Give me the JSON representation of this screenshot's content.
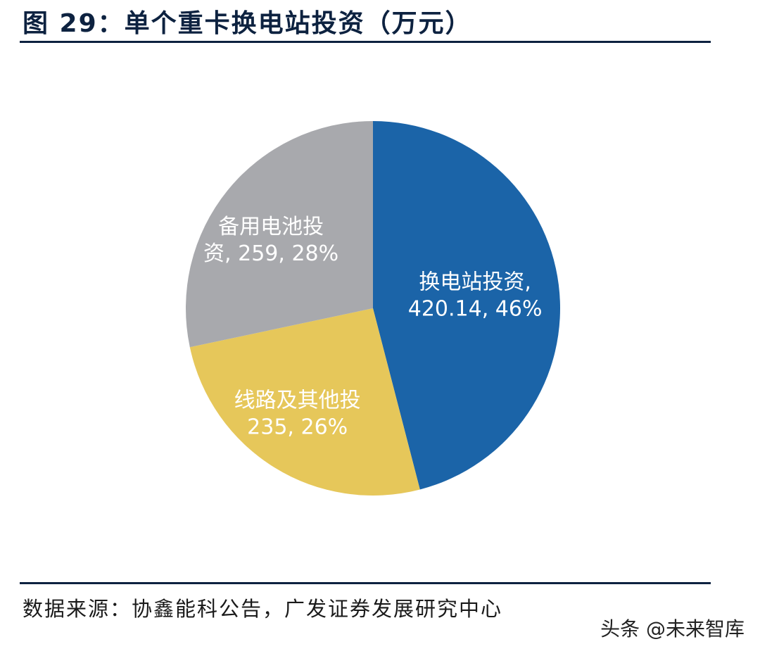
{
  "header": {
    "title": "图 29：单个重卡换电站投资（万元）"
  },
  "chart_data": {
    "type": "pie",
    "title": "图 29：单个重卡换电站投资（万元）",
    "slices": [
      {
        "label": "换电站投资",
        "value": 420.14,
        "percent": "46%",
        "color": "#1b64a8",
        "label_lines": [
          "换电站投资,",
          "420.14, 46%"
        ]
      },
      {
        "label": "线路及其他投",
        "value": 235,
        "percent": "26%",
        "color": "#e6c75a",
        "label_lines": [
          "线路及其他投",
          "235, 26%"
        ]
      },
      {
        "label": "备用电池投资",
        "value": 259,
        "percent": "28%",
        "color": "#a8a9ad",
        "label_lines": [
          "备用电池投",
          "资, 259, 28%"
        ]
      }
    ],
    "start": "top, clockwise"
  },
  "footer": {
    "source": "数据来源：协鑫能科公告，广发证券发展研究中心",
    "watermark": "头条 @未来智库"
  }
}
